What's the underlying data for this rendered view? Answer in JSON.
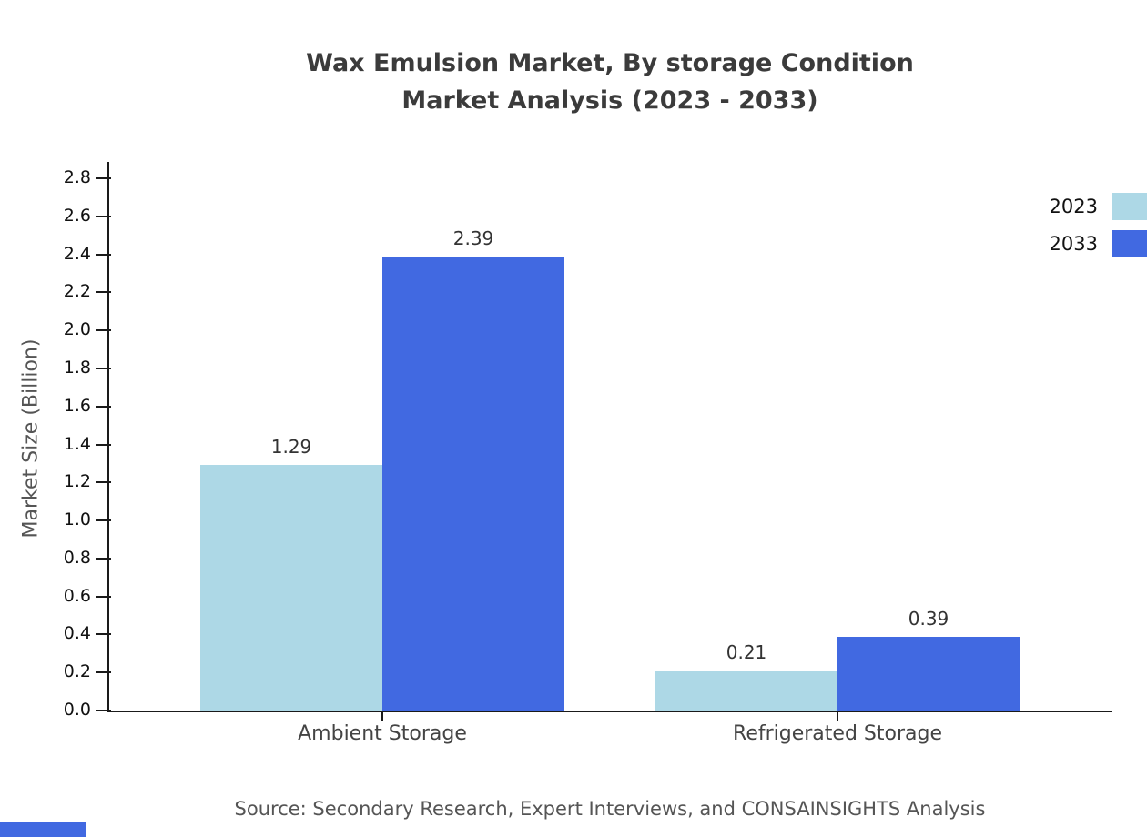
{
  "header": {
    "title_line1": "Wax Emulsion Market, By storage Condition",
    "title_line2": "Market Analysis (2023 - 2033)"
  },
  "footer": {
    "source": "Source: Secondary Research, Expert Interviews, and CONSAINSIGHTS Analysis"
  },
  "colors": {
    "series_2023": "#ADD8E6",
    "series_2033": "#4169E1",
    "axis": "#1a1a1a",
    "brand_strip": "#4169E1"
  },
  "chart_data": {
    "type": "bar",
    "title": "Wax Emulsion Market, By storage Condition - Market Analysis (2023 - 2033)",
    "categories": [
      "Ambient Storage",
      "Refrigerated Storage"
    ],
    "series": [
      {
        "name": "2023",
        "color": "#ADD8E6",
        "values": [
          1.29,
          0.21
        ]
      },
      {
        "name": "2033",
        "color": "#4169E1",
        "values": [
          2.39,
          0.39
        ]
      }
    ],
    "xlabel": "",
    "ylabel": "Market Size (Billion)",
    "ylim": [
      0,
      2.8
    ],
    "ytick_step": 0.2,
    "ytick_format_decimals": 1,
    "value_label_decimals": 2,
    "grid": false,
    "legend_position": "top-right",
    "value_labels": true
  }
}
